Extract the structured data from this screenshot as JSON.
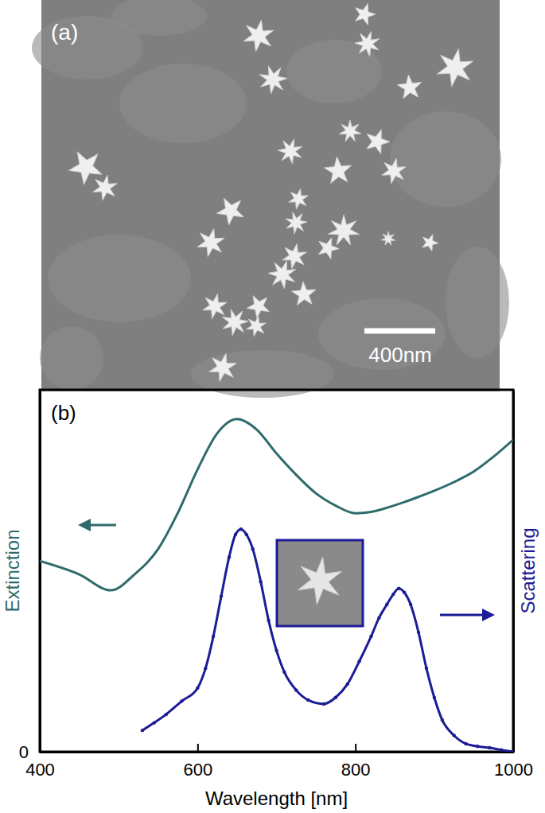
{
  "image": {
    "label": "(a)",
    "scale_bar": "400nm"
  },
  "chart_data": {
    "type": "line",
    "annotations": [
      "(b)"
    ],
    "x_label": "Wavelength [nm]",
    "y_label": "Extinction",
    "y2_label": "Scattering",
    "xlim": [
      400,
      1000
    ],
    "xticks": [
      400,
      600,
      800,
      1000
    ],
    "ylim": [
      0,
      1
    ],
    "yticks": [
      0
    ],
    "y2lim": [
      0,
      1
    ],
    "series": [
      {
        "color": "#2f6b6b",
        "line_style": "solid",
        "x": [
          400,
          450,
          490,
          520,
          550,
          575,
          600,
          625,
          650,
          675,
          700,
          725,
          750,
          775,
          800,
          825,
          850,
          875,
          900,
          925,
          950,
          975,
          1000
        ],
        "values": [
          0.527,
          0.49,
          0.446,
          0.49,
          0.56,
          0.66,
          0.78,
          0.88,
          0.919,
          0.89,
          0.824,
          0.765,
          0.714,
          0.68,
          0.659,
          0.665,
          0.681,
          0.7,
          0.721,
          0.745,
          0.774,
          0.815,
          0.862
        ]
      },
      {
        "color": "#1c1c96",
        "axis": "y2",
        "marker": "circle",
        "line_style": "solid",
        "x": [
          530,
          545,
          560,
          580,
          600,
          610,
          620,
          630,
          640,
          648,
          655,
          662,
          670,
          680,
          690,
          700,
          710,
          725,
          740,
          760,
          775,
          790,
          805,
          820,
          830,
          840,
          848,
          855,
          862,
          870,
          880,
          890,
          900,
          910,
          925,
          940,
          955,
          970,
          985,
          1000
        ],
        "values": [
          0.059,
          0.08,
          0.103,
          0.14,
          0.176,
          0.23,
          0.319,
          0.43,
          0.538,
          0.6,
          0.615,
          0.6,
          0.56,
          0.47,
          0.363,
          0.28,
          0.22,
          0.17,
          0.143,
          0.132,
          0.15,
          0.187,
          0.25,
          0.319,
          0.37,
          0.407,
          0.435,
          0.451,
          0.44,
          0.407,
          0.33,
          0.231,
          0.15,
          0.088,
          0.045,
          0.022,
          0.015,
          0.011,
          0.005,
          0
        ]
      }
    ]
  }
}
